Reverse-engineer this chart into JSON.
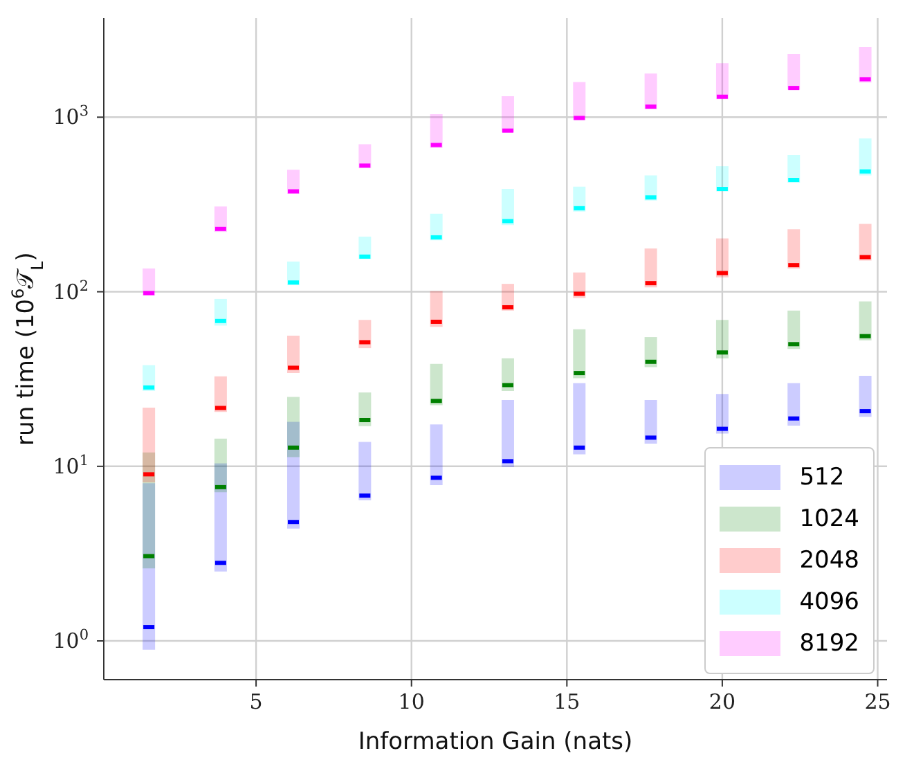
{
  "chart_data": {
    "type": "scatter",
    "xlabel": "Information Gain (nats)",
    "ylabel": "run time (10$^{6}$𝒯$_{L}$)",
    "x": [
      1.55,
      3.86,
      6.2,
      8.5,
      10.8,
      13.1,
      15.4,
      17.7,
      20.0,
      22.3,
      24.6
    ],
    "xlim": [
      0.1,
      25.3
    ],
    "xticks": [
      5,
      10,
      15,
      20,
      25
    ],
    "ylim": [
      0.6,
      3700
    ],
    "log": "y",
    "yticks": [
      {
        "value": 1,
        "label": "10$^{0}$"
      },
      {
        "value": 10,
        "label": "10$^{1}$"
      },
      {
        "value": 100,
        "label": "10$^{2}$"
      },
      {
        "value": 1000,
        "label": "10$^{3}$"
      }
    ],
    "grid": true,
    "legend": "bottom right",
    "series": [
      {
        "name": "512",
        "color": "#0000ff",
        "values": [
          1.2,
          2.8,
          4.8,
          6.8,
          8.6,
          10.7,
          12.8,
          14.6,
          16.4,
          18.8,
          20.7
        ],
        "errors": [
          [
            0.89,
            8
          ],
          [
            2.5,
            10.4
          ],
          [
            4.4,
            18
          ],
          [
            6.4,
            13.8
          ],
          [
            7.8,
            17.4
          ],
          [
            9.9,
            24
          ],
          [
            11.7,
            30
          ],
          [
            13.5,
            24
          ],
          [
            15.4,
            26
          ],
          [
            17.1,
            30
          ],
          [
            19.2,
            33
          ]
        ]
      },
      {
        "name": "1024",
        "color": "#008000",
        "values": [
          3.06,
          7.6,
          12.8,
          18.4,
          23.7,
          29.2,
          34.2,
          39.7,
          44.9,
          50.1,
          55.7
        ],
        "errors": [
          [
            2.6,
            12
          ],
          [
            7.1,
            14.4
          ],
          [
            11.3,
            25
          ],
          [
            17,
            26.5
          ],
          [
            22.4,
            38.6
          ],
          [
            27,
            41.6
          ],
          [
            32,
            61
          ],
          [
            37,
            55
          ],
          [
            41.6,
            69
          ],
          [
            47,
            78
          ],
          [
            52.7,
            88
          ]
        ]
      },
      {
        "name": "2048",
        "color": "#ff0000",
        "values": [
          9,
          21.6,
          36.7,
          51.4,
          67.3,
          81.5,
          97.3,
          112,
          128,
          142,
          158
        ],
        "errors": [
          [
            8.1,
            21.7
          ],
          [
            20.5,
            32.8
          ],
          [
            34.2,
            56
          ],
          [
            47.5,
            69
          ],
          [
            63,
            101
          ],
          [
            78,
            111
          ],
          [
            92,
            129
          ],
          [
            106,
            177
          ],
          [
            121,
            202
          ],
          [
            136,
            228
          ],
          [
            151,
            245
          ]
        ]
      },
      {
        "name": "4096",
        "color": "#00ffff",
        "values": [
          28.3,
          68,
          113,
          159,
          205,
          254,
          301,
          347,
          388,
          437,
          489
        ],
        "errors": [
          [
            27,
            38
          ],
          [
            64,
            91
          ],
          [
            109,
            149
          ],
          [
            154,
            207
          ],
          [
            197,
            280
          ],
          [
            241,
            388
          ],
          [
            288,
            400
          ],
          [
            333,
            464
          ],
          [
            376,
            524
          ],
          [
            421,
            607
          ],
          [
            464,
            755
          ]
        ]
      },
      {
        "name": "8192",
        "color": "#ff00ff",
        "values": [
          98.3,
          229,
          376,
          528,
          693,
          838,
          990,
          1150,
          1310,
          1470,
          1650
        ],
        "errors": [
          [
            95,
            136
          ],
          [
            220,
            308
          ],
          [
            364,
            500
          ],
          [
            510,
            700
          ],
          [
            667,
            1040
          ],
          [
            818,
            1320
          ],
          [
            963,
            1590
          ],
          [
            1110,
            1780
          ],
          [
            1270,
            2040
          ],
          [
            1440,
            2300
          ],
          [
            1580,
            2520
          ]
        ]
      }
    ]
  }
}
